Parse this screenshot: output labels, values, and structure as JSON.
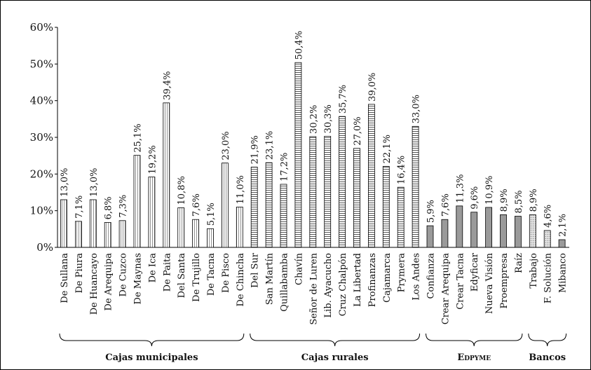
{
  "chart_data": {
    "type": "bar",
    "ylim": [
      0,
      60
    ],
    "yticks": [
      {
        "value": 0,
        "label": "0%"
      },
      {
        "value": 10,
        "label": "10%"
      },
      {
        "value": 20,
        "label": "20%"
      },
      {
        "value": 30,
        "label": "30%"
      },
      {
        "value": 40,
        "label": "40%"
      },
      {
        "value": 50,
        "label": "50%"
      },
      {
        "value": 60,
        "label": "60%"
      }
    ],
    "groups": [
      {
        "name": "Cajas municipales",
        "fill": "vertical-stripes",
        "categories": [
          "De Sullana",
          "De Piura",
          "De Huancayo",
          "De Arequipa",
          "De Cuzco",
          "De Maynas",
          "De Ica",
          "De Paita",
          "Del Santa",
          "De Trujillo",
          "De Tacna",
          "De Pisco",
          "De Chincha"
        ],
        "values": [
          13.0,
          7.1,
          13.0,
          6.8,
          7.3,
          25.1,
          19.2,
          39.4,
          10.8,
          7.6,
          5.1,
          23.0,
          11.0
        ],
        "value_labels": [
          "13,0%",
          "7,1%",
          "13,0%",
          "6,8%",
          "7,3%",
          "25,1%",
          "19,2%",
          "39,4%",
          "10,8%",
          "7,6%",
          "5,1%",
          "23,0%",
          "11,0%"
        ]
      },
      {
        "name": "Cajas rurales",
        "fill": "horizontal-stripes",
        "categories": [
          "Del Sur",
          "San Martín",
          "Quillabamba",
          "Chavín",
          "Señor de Luren",
          "Lib. Ayacucho",
          "Cruz Chalpón",
          "La Libertad",
          "Profinanzas",
          "Cajamarca",
          "Prymera",
          "Los Andes"
        ],
        "values": [
          21.9,
          23.1,
          17.2,
          50.4,
          30.2,
          30.3,
          35.7,
          27.0,
          39.0,
          22.1,
          16.4,
          33.0
        ],
        "value_labels": [
          "21,9%",
          "23,1%",
          "17,2%",
          "50,4%",
          "30,2%",
          "30,3%",
          "35,7%",
          "27,0%",
          "39,0%",
          "22,1%",
          "16,4%",
          "33,0%"
        ]
      },
      {
        "name": "Edpyme",
        "fill": "gray",
        "categories": [
          "Confianza",
          "Crear Arequipa",
          "Crear Tacna",
          "Edyficar",
          "Nueva Visión",
          "Proempresa",
          "Raíz"
        ],
        "values": [
          5.9,
          7.6,
          11.3,
          9.6,
          10.9,
          8.9,
          8.5
        ],
        "value_labels": [
          "5,9%",
          "7,6%",
          "11,3%",
          "9,6%",
          "10,9%",
          "8,9%",
          "8,5%"
        ]
      },
      {
        "name": "Bancos",
        "fills": [
          "dots",
          "dots",
          "gray"
        ],
        "categories": [
          "Trabajo",
          "F. Solución",
          "Mibanco"
        ],
        "values": [
          8.9,
          4.6,
          2.1
        ],
        "value_labels": [
          "8,9%",
          "4,6%",
          "2,1%"
        ]
      }
    ]
  }
}
